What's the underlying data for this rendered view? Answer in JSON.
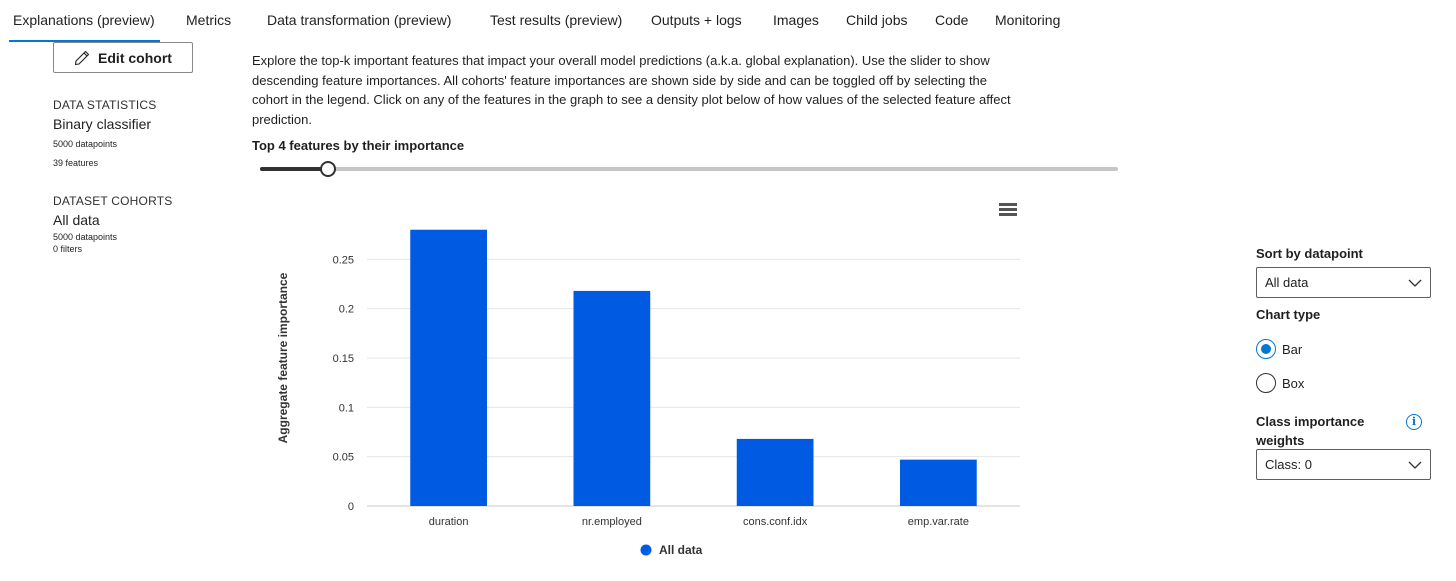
{
  "tabs": [
    {
      "label": "Explanations (preview)",
      "active": true
    },
    {
      "label": "Metrics"
    },
    {
      "label": "Data transformation (preview)"
    },
    {
      "label": "Test results (preview)"
    },
    {
      "label": "Outputs + logs"
    },
    {
      "label": "Images"
    },
    {
      "label": "Child jobs"
    },
    {
      "label": "Code"
    },
    {
      "label": "Monitoring"
    }
  ],
  "left_panel": {
    "edit_cohort_label": "Edit cohort",
    "data_statistics_label": "DATA STATISTICS",
    "classifier": "Binary classifier",
    "datapoints": "5000 datapoints",
    "features": "39 features",
    "dataset_cohorts_label": "DATASET COHORTS",
    "cohort_name": "All data",
    "cohort_datapoints": "5000 datapoints",
    "cohort_filters": "0 filters"
  },
  "main": {
    "description": "Explore the top-k important features that impact your overall model predictions (a.k.a. global explanation). Use the slider to show descending feature importances. All cohorts' feature importances are shown side by side and can be toggled off by selecting the cohort in the legend. Click on any of the features in the graph to see a density plot below of how values of the selected feature affect prediction.",
    "topk_label": "Top 4 features by their importance",
    "slider": {
      "value": 4,
      "min": 1,
      "max": 39
    }
  },
  "chart_data": {
    "type": "bar",
    "categories": [
      "duration",
      "nr.employed",
      "cons.conf.idx",
      "emp.var.rate"
    ],
    "series": [
      {
        "name": "All data",
        "values": [
          0.28,
          0.218,
          0.068,
          0.047
        ],
        "color": "#005be2"
      }
    ],
    "ylabel": "Aggregate feature importance",
    "xlabel": "",
    "yticks": [
      "0",
      "0.05",
      "0.1",
      "0.15",
      "0.2",
      "0.25"
    ],
    "ylim": [
      0,
      0.3
    ],
    "grid": true,
    "legend": "bottom-center"
  },
  "right_panel": {
    "sort_label": "Sort by datapoint",
    "sort_value": "All data",
    "chart_type_label": "Chart type",
    "chart_type_options": [
      {
        "label": "Bar",
        "checked": true
      },
      {
        "label": "Box",
        "checked": false
      }
    ],
    "class_importance_label_line1": "Class importance",
    "class_importance_label_line2": "weights",
    "class_value": "Class: 0"
  },
  "icons": {
    "edit": "pencil-icon",
    "menu": "hamburger-menu-icon",
    "info": "info-icon",
    "dropdown": "chevron-down-icon"
  }
}
